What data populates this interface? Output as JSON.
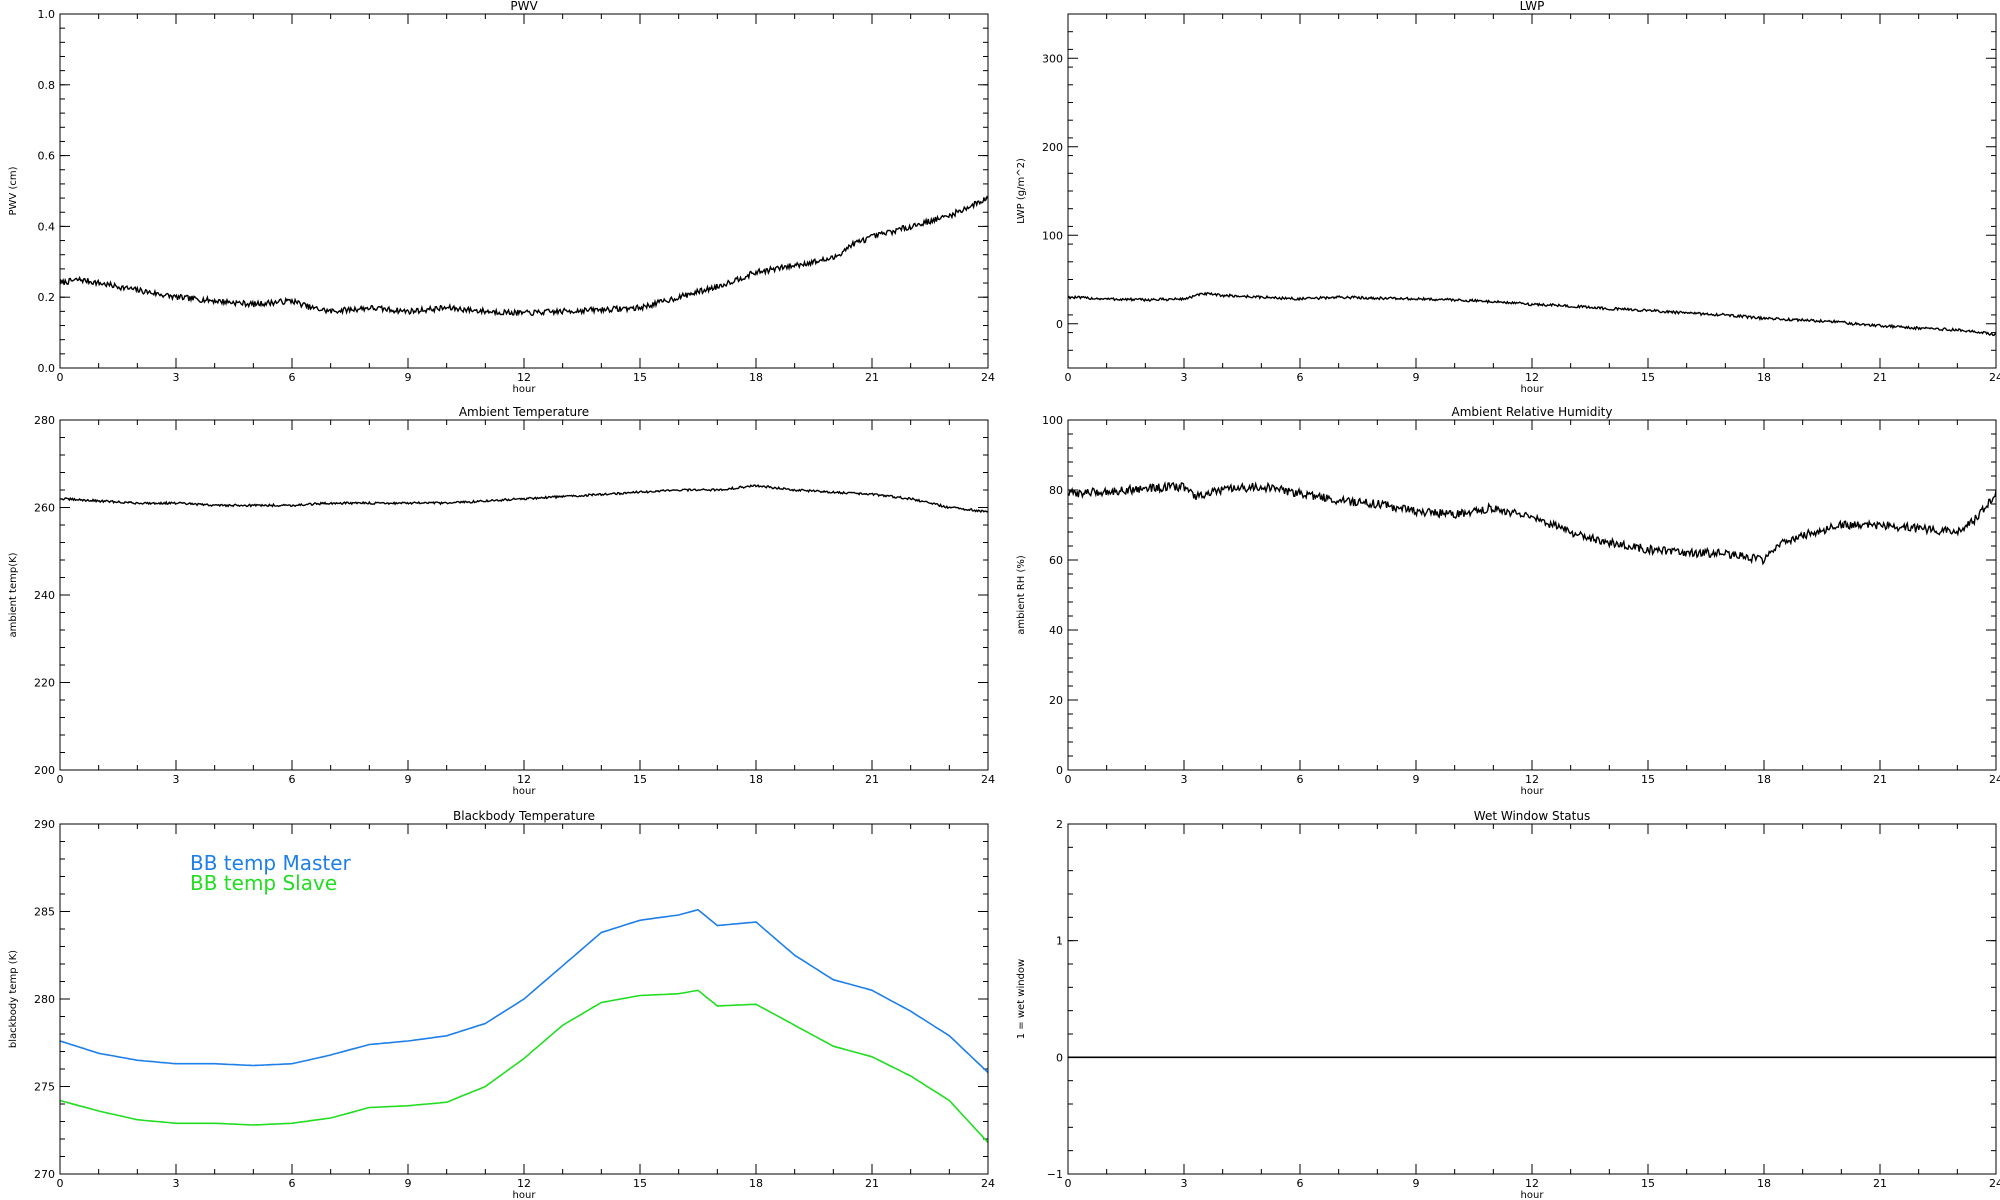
{
  "chart_data": [
    {
      "id": "pwv",
      "type": "line",
      "title": "PWV",
      "xlabel": "hour",
      "ylabel": "PWV (cm)",
      "xlim": [
        0,
        24
      ],
      "ylim": [
        0,
        1.0
      ],
      "xticks": [
        0,
        3,
        6,
        9,
        12,
        15,
        18,
        21,
        24
      ],
      "yticks": [
        0.0,
        0.2,
        0.4,
        0.6,
        0.8,
        1.0
      ],
      "ytick_labels": [
        "0.0",
        "0.2",
        "0.4",
        "0.6",
        "0.8",
        "1.0"
      ],
      "series": [
        {
          "color": "#000000",
          "noise": 0.008,
          "points": [
            [
              0,
              0.24
            ],
            [
              0.5,
              0.25
            ],
            [
              1,
              0.24
            ],
            [
              2,
              0.22
            ],
            [
              3,
              0.2
            ],
            [
              4,
              0.19
            ],
            [
              5,
              0.18
            ],
            [
              6,
              0.19
            ],
            [
              6.5,
              0.17
            ],
            [
              7,
              0.16
            ],
            [
              8,
              0.17
            ],
            [
              9,
              0.16
            ],
            [
              10,
              0.17
            ],
            [
              11,
              0.16
            ],
            [
              12,
              0.155
            ],
            [
              13,
              0.16
            ],
            [
              14,
              0.165
            ],
            [
              15,
              0.17
            ],
            [
              16,
              0.2
            ],
            [
              17,
              0.23
            ],
            [
              18,
              0.27
            ],
            [
              19,
              0.29
            ],
            [
              20,
              0.31
            ],
            [
              20.5,
              0.35
            ],
            [
              21,
              0.37
            ],
            [
              22,
              0.4
            ],
            [
              23,
              0.43
            ],
            [
              24,
              0.48
            ]
          ]
        }
      ]
    },
    {
      "id": "lwp",
      "type": "line",
      "title": "LWP",
      "xlabel": "hour",
      "ylabel": "LWP (g/m^2)",
      "xlim": [
        0,
        24
      ],
      "ylim": [
        -50,
        350
      ],
      "xticks": [
        0,
        3,
        6,
        9,
        12,
        15,
        18,
        21,
        24
      ],
      "yticks": [
        0,
        100,
        200,
        300
      ],
      "ytick_labels": [
        "0",
        "100",
        "200",
        "300"
      ],
      "series": [
        {
          "color": "#000000",
          "noise": 1.5,
          "points": [
            [
              0,
              30
            ],
            [
              1,
              28
            ],
            [
              2,
              27
            ],
            [
              3,
              28
            ],
            [
              3.5,
              34
            ],
            [
              4,
              32
            ],
            [
              5,
              30
            ],
            [
              6,
              28
            ],
            [
              7,
              30
            ],
            [
              8,
              29
            ],
            [
              9,
              28
            ],
            [
              10,
              27
            ],
            [
              11,
              25
            ],
            [
              12,
              22
            ],
            [
              13,
              20
            ],
            [
              14,
              17
            ],
            [
              15,
              15
            ],
            [
              16,
              12
            ],
            [
              17,
              10
            ],
            [
              18,
              6
            ],
            [
              19,
              4
            ],
            [
              20,
              2
            ],
            [
              20.3,
              0
            ],
            [
              21,
              -2
            ],
            [
              22,
              -5
            ],
            [
              23,
              -7
            ],
            [
              24,
              -12
            ]
          ]
        }
      ]
    },
    {
      "id": "ambient-temp",
      "type": "line",
      "title": "Ambient Temperature",
      "xlabel": "hour",
      "ylabel": "ambient temp(K)",
      "xlim": [
        0,
        24
      ],
      "ylim": [
        200,
        280
      ],
      "xticks": [
        0,
        3,
        6,
        9,
        12,
        15,
        18,
        21,
        24
      ],
      "yticks": [
        200,
        220,
        240,
        260,
        280
      ],
      "ytick_labels": [
        "200",
        "220",
        "240",
        "260",
        "280"
      ],
      "series": [
        {
          "color": "#000000",
          "noise": 0.25,
          "points": [
            [
              0,
              262
            ],
            [
              1,
              261.5
            ],
            [
              2,
              261
            ],
            [
              3,
              261
            ],
            [
              4,
              260.5
            ],
            [
              5,
              260.5
            ],
            [
              6,
              260.5
            ],
            [
              7,
              261
            ],
            [
              8,
              261
            ],
            [
              9,
              261
            ],
            [
              10,
              261
            ],
            [
              11,
              261.5
            ],
            [
              12,
              262
            ],
            [
              13,
              262.5
            ],
            [
              14,
              263
            ],
            [
              15,
              263.5
            ],
            [
              16,
              264
            ],
            [
              17,
              264
            ],
            [
              17.5,
              264.5
            ],
            [
              18,
              265
            ],
            [
              19,
              264
            ],
            [
              20,
              263.5
            ],
            [
              21,
              263
            ],
            [
              22,
              262
            ],
            [
              23,
              260
            ],
            [
              24,
              259
            ]
          ]
        }
      ]
    },
    {
      "id": "ambient-rh",
      "type": "line",
      "title": "Ambient Relative Humidity",
      "xlabel": "hour",
      "ylabel": "ambient RH (%)",
      "xlim": [
        0,
        24
      ],
      "ylim": [
        0,
        100
      ],
      "xticks": [
        0,
        3,
        6,
        9,
        12,
        15,
        18,
        21,
        24
      ],
      "yticks": [
        0,
        20,
        40,
        60,
        80,
        100
      ],
      "ytick_labels": [
        "0",
        "20",
        "40",
        "60",
        "80",
        "100"
      ],
      "series": [
        {
          "color": "#000000",
          "noise": 1.2,
          "points": [
            [
              0,
              79
            ],
            [
              1,
              79.5
            ],
            [
              2,
              80.5
            ],
            [
              3,
              81
            ],
            [
              3.3,
              78
            ],
            [
              4,
              80
            ],
            [
              5,
              81
            ],
            [
              6,
              79
            ],
            [
              7,
              77
            ],
            [
              8,
              76
            ],
            [
              9,
              74
            ],
            [
              10,
              73
            ],
            [
              11,
              75
            ],
            [
              12,
              72
            ],
            [
              13,
              68
            ],
            [
              14,
              65
            ],
            [
              15,
              63
            ],
            [
              16,
              62
            ],
            [
              17,
              62
            ],
            [
              17.5,
              61
            ],
            [
              18,
              60
            ],
            [
              18.5,
              65
            ],
            [
              19,
              67
            ],
            [
              20,
              70
            ],
            [
              21,
              70
            ],
            [
              22,
              69
            ],
            [
              23,
              68
            ],
            [
              23.5,
              72
            ],
            [
              24,
              79
            ]
          ]
        }
      ]
    },
    {
      "id": "blackbody-temp",
      "type": "line",
      "title": "Blackbody Temperature",
      "xlabel": "hour",
      "ylabel": "blackbody temp (K)",
      "xlim": [
        0,
        24
      ],
      "ylim": [
        270,
        290
      ],
      "xticks": [
        0,
        3,
        6,
        9,
        12,
        15,
        18,
        21,
        24
      ],
      "yticks": [
        270,
        275,
        280,
        285,
        290
      ],
      "ytick_labels": [
        "270",
        "275",
        "280",
        "285",
        "290"
      ],
      "series": [
        {
          "name": "BB temp Master",
          "color": "#1e7fe8",
          "noise": 0,
          "points": [
            [
              0,
              277.6
            ],
            [
              1,
              276.9
            ],
            [
              2,
              276.5
            ],
            [
              3,
              276.3
            ],
            [
              4,
              276.3
            ],
            [
              5,
              276.2
            ],
            [
              6,
              276.3
            ],
            [
              7,
              276.8
            ],
            [
              8,
              277.4
            ],
            [
              9,
              277.6
            ],
            [
              10,
              277.9
            ],
            [
              11,
              278.6
            ],
            [
              12,
              280.0
            ],
            [
              13,
              281.9
            ],
            [
              14,
              283.8
            ],
            [
              15,
              284.5
            ],
            [
              16,
              284.8
            ],
            [
              16.5,
              285.1
            ],
            [
              17,
              284.2
            ],
            [
              18,
              284.4
            ],
            [
              19,
              282.5
            ],
            [
              20,
              281.1
            ],
            [
              21,
              280.5
            ],
            [
              22,
              279.3
            ],
            [
              23,
              277.9
            ],
            [
              24,
              275.8
            ]
          ]
        },
        {
          "name": "BB temp Slave",
          "color": "#22dd22",
          "noise": 0,
          "points": [
            [
              0,
              274.2
            ],
            [
              1,
              273.6
            ],
            [
              2,
              273.1
            ],
            [
              3,
              272.9
            ],
            [
              4,
              272.9
            ],
            [
              5,
              272.8
            ],
            [
              6,
              272.9
            ],
            [
              7,
              273.2
            ],
            [
              8,
              273.8
            ],
            [
              9,
              273.9
            ],
            [
              10,
              274.1
            ],
            [
              11,
              275.0
            ],
            [
              12,
              276.6
            ],
            [
              13,
              278.5
            ],
            [
              14,
              279.8
            ],
            [
              15,
              280.2
            ],
            [
              16,
              280.3
            ],
            [
              16.5,
              280.5
            ],
            [
              17,
              279.6
            ],
            [
              18,
              279.7
            ],
            [
              19,
              278.5
            ],
            [
              20,
              277.3
            ],
            [
              21,
              276.7
            ],
            [
              22,
              275.6
            ],
            [
              23,
              274.2
            ],
            [
              24,
              271.8
            ]
          ]
        }
      ]
    },
    {
      "id": "wet-window",
      "type": "line",
      "title": "Wet Window Status",
      "xlabel": "hour",
      "ylabel": "1 = wet window",
      "xlim": [
        0,
        24
      ],
      "ylim": [
        -1,
        2
      ],
      "xticks": [
        0,
        3,
        6,
        9,
        12,
        15,
        18,
        21,
        24
      ],
      "yticks": [
        -1,
        0,
        1,
        2
      ],
      "ytick_labels": [
        "−1",
        "0",
        "1",
        "2"
      ],
      "series": [
        {
          "color": "#000000",
          "noise": 0,
          "points": [
            [
              0,
              0
            ],
            [
              24,
              0
            ]
          ]
        }
      ]
    }
  ]
}
